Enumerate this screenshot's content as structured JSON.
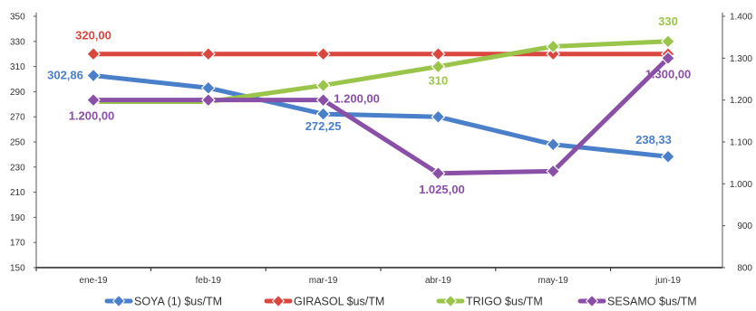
{
  "chart_data": {
    "type": "line",
    "categories": [
      "ene-19",
      "feb-19",
      "mar-19",
      "abr-19",
      "may-19",
      "jun-19"
    ],
    "left_axis": {
      "ticks": [
        "150",
        "170",
        "190",
        "210",
        "230",
        "250",
        "270",
        "290",
        "310",
        "330",
        "350"
      ],
      "range": [
        150,
        350
      ]
    },
    "right_axis": {
      "ticks": [
        "800",
        "900",
        "1.000",
        "1.100",
        "1.200",
        "1.300",
        "1.400"
      ],
      "range": [
        800,
        1400
      ]
    },
    "grid": false,
    "legend_position": "bottom",
    "series": [
      {
        "name": "SOYA (1) $us/TM",
        "axis": "left",
        "color": "#4a7fc9",
        "values": [
          302.86,
          293,
          272.25,
          270,
          248,
          238.33
        ]
      },
      {
        "name": "GIRASOL  $us/TM",
        "axis": "left",
        "color": "#d9473f",
        "values": [
          320,
          320,
          320,
          320,
          320,
          320
        ]
      },
      {
        "name": "TRIGO $us/TM",
        "axis": "left",
        "color": "#9bc54a",
        "values": [
          282,
          282,
          295,
          310,
          326,
          330
        ]
      },
      {
        "name": "SESAMO $us/TM",
        "axis": "right",
        "color": "#8a4fa6",
        "values": [
          1200,
          1200,
          1200,
          1025,
          1030,
          1300
        ]
      }
    ],
    "data_labels": [
      {
        "text": "302,86",
        "series": 0,
        "point": 0
      },
      {
        "text": "272,25",
        "series": 0,
        "point": 2
      },
      {
        "text": "238,33",
        "series": 0,
        "point": 5
      },
      {
        "text": "320,00",
        "series": 1,
        "point": 0
      },
      {
        "text": "310",
        "series": 2,
        "point": 3
      },
      {
        "text": "330",
        "series": 2,
        "point": 5
      },
      {
        "text": "1.200,00",
        "series": 3,
        "point": 0
      },
      {
        "text": "1.200,00",
        "series": 3,
        "point": 2
      },
      {
        "text": "1.025,00",
        "series": 3,
        "point": 3
      },
      {
        "text": "1.300,00",
        "series": 3,
        "point": 5
      }
    ]
  }
}
